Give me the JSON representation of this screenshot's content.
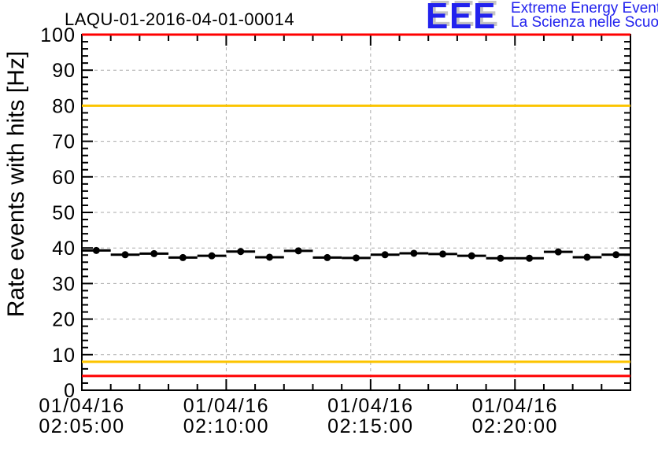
{
  "header": {
    "title": "LAQU-01-2016-04-01-00014",
    "logo": {
      "acronym": "EEE",
      "line1": "Extreme Energy Events",
      "line2": "La Scienza nelle Scuole",
      "text_color": "#2222ee",
      "shadow_color": "#c4c4c4"
    }
  },
  "chart_data": {
    "type": "scatter",
    "title": "LAQU-01-2016-04-01-00014",
    "xlabel": "",
    "ylabel": "Rate events with hits [Hz]",
    "ylim": [
      0,
      100
    ],
    "y_major_step": 10,
    "y_minor_step": 2,
    "grid": true,
    "x_minutes_total": 19,
    "x_start_label": "02:05:00",
    "x_ticks": [
      {
        "minute": 0,
        "date": "01/04/16",
        "time": "02:05:00"
      },
      {
        "minute": 5,
        "date": "01/04/16",
        "time": "02:10:00"
      },
      {
        "minute": 10,
        "date": "01/04/16",
        "time": "02:15:00"
      },
      {
        "minute": 15,
        "date": "01/04/16",
        "time": "02:20:00"
      }
    ],
    "x_minor_step_minutes": 1,
    "threshold_lines": [
      {
        "value": 100,
        "color": "#ff0000"
      },
      {
        "value": 80,
        "color": "#fcc400"
      },
      {
        "value": 8,
        "color": "#fcc400"
      },
      {
        "value": 4,
        "color": "#ff0000"
      }
    ],
    "series": [
      {
        "name": "rate-events-with-hits",
        "marker": "filled-circle",
        "color": "#000000",
        "bin_width_minutes": 1,
        "points": [
          {
            "t": 0.5,
            "time": "02:05:30",
            "value": 39.3,
            "err": 0.8
          },
          {
            "t": 1.5,
            "time": "02:06:30",
            "value": 38.1,
            "err": 0.8
          },
          {
            "t": 2.5,
            "time": "02:07:30",
            "value": 38.4,
            "err": 0.8
          },
          {
            "t": 3.5,
            "time": "02:08:30",
            "value": 37.3,
            "err": 0.8
          },
          {
            "t": 4.5,
            "time": "02:09:30",
            "value": 37.8,
            "err": 0.8
          },
          {
            "t": 5.5,
            "time": "02:10:30",
            "value": 39.0,
            "err": 0.8
          },
          {
            "t": 6.5,
            "time": "02:11:30",
            "value": 37.4,
            "err": 0.8
          },
          {
            "t": 7.5,
            "time": "02:12:30",
            "value": 39.2,
            "err": 0.8
          },
          {
            "t": 8.5,
            "time": "02:13:30",
            "value": 37.3,
            "err": 0.8
          },
          {
            "t": 9.5,
            "time": "02:14:30",
            "value": 37.2,
            "err": 0.8
          },
          {
            "t": 10.5,
            "time": "02:15:30",
            "value": 38.1,
            "err": 0.8
          },
          {
            "t": 11.5,
            "time": "02:16:30",
            "value": 38.5,
            "err": 0.8
          },
          {
            "t": 12.5,
            "time": "02:17:30",
            "value": 38.3,
            "err": 0.8
          },
          {
            "t": 13.5,
            "time": "02:18:30",
            "value": 37.8,
            "err": 0.8
          },
          {
            "t": 14.5,
            "time": "02:19:30",
            "value": 37.1,
            "err": 0.8
          },
          {
            "t": 15.5,
            "time": "02:20:30",
            "value": 37.1,
            "err": 0.8
          },
          {
            "t": 16.5,
            "time": "02:21:30",
            "value": 38.9,
            "err": 0.8
          },
          {
            "t": 17.5,
            "time": "02:22:30",
            "value": 37.4,
            "err": 0.8
          },
          {
            "t": 18.5,
            "time": "02:23:30",
            "value": 38.1,
            "err": 0.8
          }
        ]
      }
    ],
    "colors": {
      "axis": "#000000",
      "grid": "#aaaaaa",
      "background": "#ffffff"
    }
  }
}
